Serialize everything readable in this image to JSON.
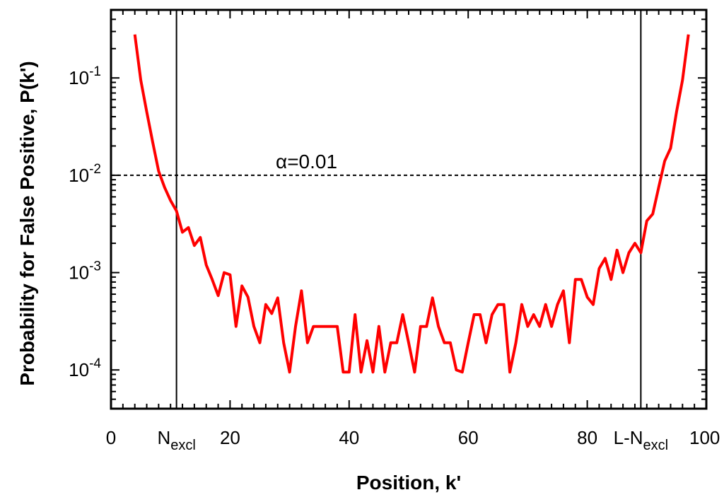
{
  "chart_data": {
    "type": "line",
    "title": "",
    "xlabel": "Position, k'",
    "ylabel": "Probability for False Positive, P(k')",
    "xlim": [
      0,
      100
    ],
    "ylim": [
      4e-05,
      0.5
    ],
    "y_scale": "log",
    "grid": false,
    "x_ticks": [
      "0",
      "20",
      "40",
      "60",
      "80",
      "100"
    ],
    "x_special_ticks": [
      {
        "value": 11,
        "base": "N",
        "sub": "excl"
      },
      {
        "value": 89,
        "base": "L-N",
        "sub": "excl"
      }
    ],
    "y_ticks": [
      {
        "value": 0.1,
        "base": "10",
        "exp": "-1"
      },
      {
        "value": 0.01,
        "base": "10",
        "exp": "-2"
      },
      {
        "value": 0.001,
        "base": "10",
        "exp": "-3"
      },
      {
        "value": 0.0001,
        "base": "10",
        "exp": "-4"
      }
    ],
    "threshold": {
      "value": 0.01,
      "label": "α=0.01",
      "style": "dashed"
    },
    "vlines": [
      11,
      89
    ],
    "series": [
      {
        "color": "#ff0000",
        "x": [
          4,
          5,
          6,
          7,
          8,
          9,
          10,
          11,
          12,
          13,
          14,
          15,
          16,
          17,
          18,
          19,
          20,
          21,
          22,
          23,
          24,
          25,
          26,
          27,
          28,
          29,
          30,
          31,
          32,
          33,
          34,
          35,
          36,
          37,
          38,
          39,
          40,
          41,
          42,
          43,
          44,
          45,
          46,
          47,
          48,
          49,
          50,
          51,
          52,
          53,
          54,
          55,
          56,
          57,
          58,
          59,
          60,
          61,
          62,
          63,
          64,
          65,
          66,
          67,
          68,
          69,
          70,
          71,
          72,
          73,
          74,
          75,
          76,
          77,
          78,
          79,
          80,
          81,
          82,
          83,
          84,
          85,
          86,
          87,
          88,
          89,
          90,
          91,
          92,
          93,
          94,
          95,
          96,
          97
        ],
        "y": [
          0.28,
          0.095,
          0.045,
          0.022,
          0.011,
          0.0075,
          0.0055,
          0.0043,
          0.0026,
          0.0029,
          0.0019,
          0.0023,
          0.0012,
          0.00085,
          0.00058,
          0.001,
          0.00095,
          0.00028,
          0.00073,
          0.00056,
          0.00028,
          0.00019,
          0.00047,
          0.00038,
          0.00055,
          0.00019,
          9.5e-05,
          0.00028,
          0.00065,
          0.00019,
          0.00028,
          0.00028,
          0.00028,
          0.00028,
          0.00028,
          9.5e-05,
          9.5e-05,
          0.00037,
          9.5e-05,
          0.0002,
          9.5e-05,
          0.00028,
          9.5e-05,
          0.00019,
          0.00019,
          0.00037,
          0.00019,
          9.5e-05,
          0.00028,
          0.00028,
          0.00055,
          0.00028,
          0.00019,
          0.00019,
          0.0001,
          9.5e-05,
          0.00019,
          0.00037,
          0.00037,
          0.00019,
          0.00037,
          0.00047,
          0.00047,
          9.5e-05,
          0.00019,
          0.00047,
          0.00028,
          0.00037,
          0.00028,
          0.00047,
          0.00028,
          0.00047,
          0.00065,
          0.00019,
          0.00085,
          0.00085,
          0.00056,
          0.00047,
          0.0011,
          0.0014,
          0.00085,
          0.0017,
          0.001,
          0.0016,
          0.002,
          0.0016,
          0.0034,
          0.004,
          0.0075,
          0.014,
          0.019,
          0.045,
          0.095,
          0.28
        ]
      }
    ]
  }
}
